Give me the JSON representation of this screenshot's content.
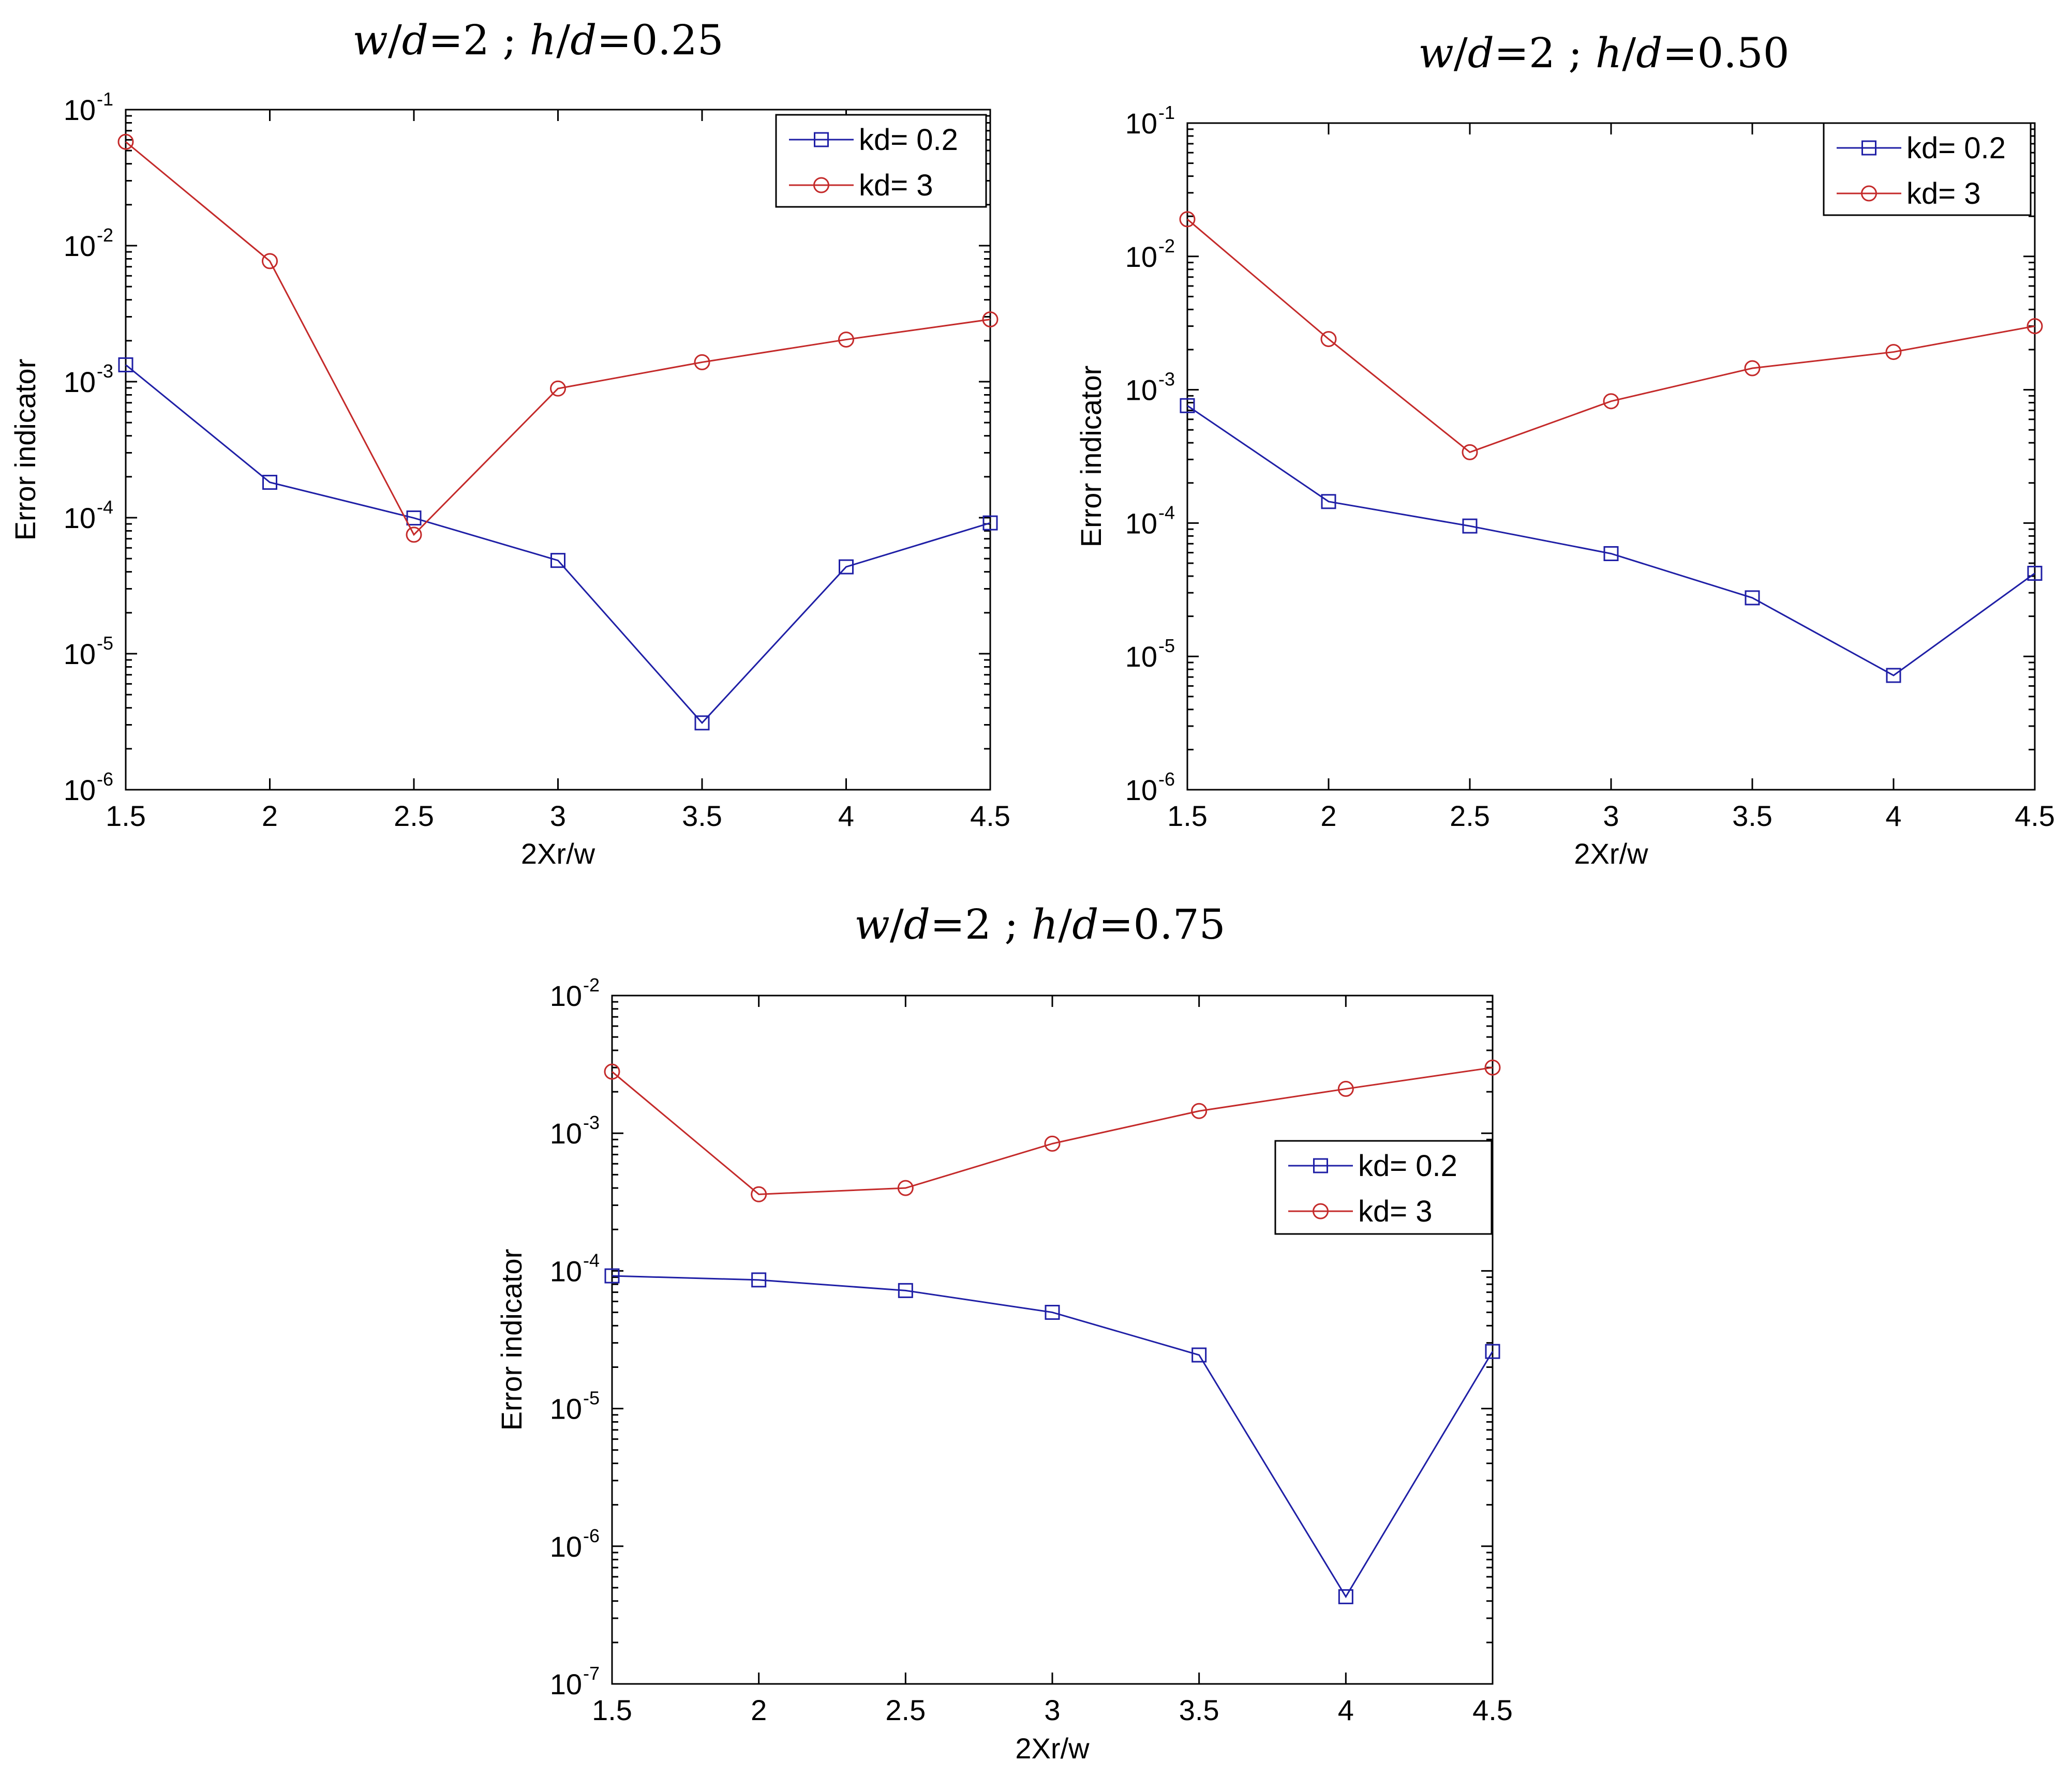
{
  "chart_data": [
    {
      "type": "line",
      "title_parts": [
        "w",
        "/",
        "d",
        "=2 ; ",
        "h",
        "/",
        "d",
        "=0.25"
      ],
      "xlabel": "2Xr/w",
      "ylabel": "Error indicator",
      "yscale": "log",
      "x": [
        1.5,
        2,
        2.5,
        3,
        3.5,
        4,
        4.5
      ],
      "xlim": [
        1.5,
        4.5
      ],
      "ylim_exp": [
        -6,
        -1
      ],
      "legend_position": "top-right",
      "series": [
        {
          "name": "kd= 0.2",
          "color": "#1f1fa6",
          "marker": "square",
          "values": [
            0.00133,
            0.000182,
            9.95e-05,
            4.85e-05,
            3.1e-06,
            4.35e-05,
            9.15e-05
          ]
        },
        {
          "name": "kd= 3",
          "color": "#c42a2a",
          "marker": "circle",
          "values": [
            0.058,
            0.0077,
            7.5e-05,
            0.00089,
            0.00139,
            0.00204,
            0.00287
          ]
        }
      ]
    },
    {
      "type": "line",
      "title_parts": [
        "w",
        "/",
        "d",
        "=2 ; ",
        "h",
        "/",
        "d",
        "=0.50"
      ],
      "xlabel": "2Xr/w",
      "ylabel": "Error indicator",
      "yscale": "log",
      "x": [
        1.5,
        2,
        2.5,
        3,
        3.5,
        4,
        4.5
      ],
      "xlim": [
        1.5,
        4.5
      ],
      "ylim_exp": [
        -6,
        -1
      ],
      "legend_position": "top-right",
      "series": [
        {
          "name": "kd= 0.2",
          "color": "#1f1fa6",
          "marker": "square",
          "values": [
            0.00076,
            0.000145,
            9.5e-05,
            5.9e-05,
            2.75e-05,
            7.2e-06,
            4.2e-05
          ]
        },
        {
          "name": "kd= 3",
          "color": "#c42a2a",
          "marker": "circle",
          "values": [
            0.019,
            0.0024,
            0.00034,
            0.00082,
            0.00145,
            0.00192,
            0.003
          ]
        }
      ]
    },
    {
      "type": "line",
      "title_parts": [
        "w",
        "/",
        "d",
        "=2 ; ",
        "h",
        "/",
        "d",
        "=0.75"
      ],
      "xlabel": "2Xr/w",
      "ylabel": "Error indicator",
      "yscale": "log",
      "x": [
        1.5,
        2,
        2.5,
        3,
        3.5,
        4,
        4.5
      ],
      "xlim": [
        1.5,
        4.5
      ],
      "ylim_exp": [
        -7,
        -2
      ],
      "legend_position": "right",
      "series": [
        {
          "name": "kd= 0.2",
          "color": "#1f1fa6",
          "marker": "square",
          "values": [
            9.2e-05,
            8.6e-05,
            7.2e-05,
            5e-05,
            2.45e-05,
            4.3e-07,
            2.6e-05
          ]
        },
        {
          "name": "kd= 3",
          "color": "#c42a2a",
          "marker": "circle",
          "values": [
            0.0028,
            0.00036,
            0.0004,
            0.00084,
            0.00145,
            0.0021,
            0.003
          ]
        }
      ]
    }
  ]
}
